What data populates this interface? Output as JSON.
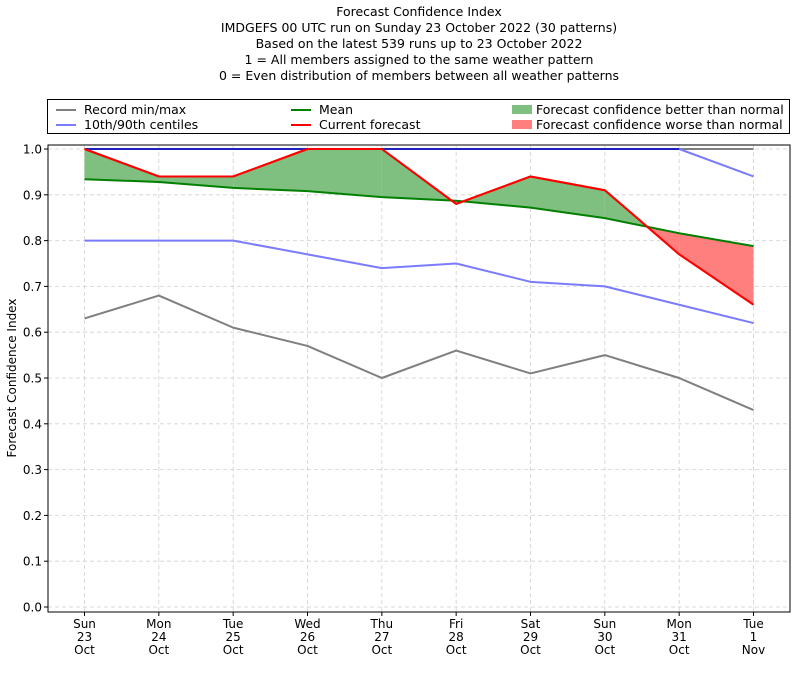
{
  "chart_data": {
    "type": "line",
    "title": "Forecast Confidence Index",
    "subtitle_lines": [
      "IMDGEFS 00 UTC run on Sunday 23 October 2022 (30 patterns)",
      "Based on the latest 539 runs up to 23 October 2022",
      "1 = All members assigned to the same weather pattern",
      "0 = Even distribution of members between all weather patterns"
    ],
    "xlabel": "",
    "ylabel": "Forecast Confidence Index",
    "ylim": [
      0.0,
      1.0
    ],
    "yticks": [
      "0.0",
      "0.1",
      "0.2",
      "0.3",
      "0.4",
      "0.5",
      "0.6",
      "0.7",
      "0.8",
      "0.9",
      "1.0"
    ],
    "categories": [
      [
        "Sun",
        "23",
        "Oct"
      ],
      [
        "Mon",
        "24",
        "Oct"
      ],
      [
        "Tue",
        "25",
        "Oct"
      ],
      [
        "Wed",
        "26",
        "Oct"
      ],
      [
        "Thu",
        "27",
        "Oct"
      ],
      [
        "Fri",
        "28",
        "Oct"
      ],
      [
        "Sat",
        "29",
        "Oct"
      ],
      [
        "Sun",
        "30",
        "Oct"
      ],
      [
        "Mon",
        "31",
        "Oct"
      ],
      [
        "Tue",
        "1",
        "Nov"
      ]
    ],
    "grid": true,
    "legend_position": "top",
    "series": [
      {
        "name": "Record min",
        "legend_group": "Record min/max",
        "color": "#7f7f7f",
        "values": [
          0.63,
          0.68,
          0.61,
          0.57,
          0.5,
          0.56,
          0.51,
          0.55,
          0.5,
          0.43
        ]
      },
      {
        "name": "Record max",
        "legend_group": "Record min/max",
        "color": "#7f7f7f",
        "values": [
          1.0,
          1.0,
          1.0,
          1.0,
          1.0,
          1.0,
          1.0,
          1.0,
          1.0,
          1.0
        ]
      },
      {
        "name": "10th centile",
        "legend_group": "10th/90th centiles",
        "color": "#7b7bff",
        "values": [
          0.8,
          0.8,
          0.8,
          0.77,
          0.74,
          0.75,
          0.71,
          0.7,
          0.66,
          0.62
        ]
      },
      {
        "name": "90th centile",
        "legend_group": "10th/90th centiles",
        "color": "#7b7bff",
        "values": [
          1.0,
          1.0,
          1.0,
          1.0,
          1.0,
          1.0,
          1.0,
          1.0,
          1.0,
          0.94
        ]
      },
      {
        "name": "Mean",
        "color": "#008000",
        "values": [
          0.934,
          0.928,
          0.915,
          0.908,
          0.895,
          0.887,
          0.872,
          0.849,
          0.816,
          0.788
        ]
      },
      {
        "name": "Current forecast",
        "color": "#ff0000",
        "values": [
          1.0,
          0.94,
          0.94,
          1.0,
          1.0,
          0.88,
          0.94,
          0.91,
          0.77,
          0.66
        ]
      }
    ],
    "fills": [
      {
        "name": "Forecast confidence better than normal",
        "color": "#7fbf7f",
        "condition": "current > mean"
      },
      {
        "name": "Forecast confidence worse than normal",
        "color": "#ff7f7f",
        "condition": "current < mean"
      }
    ],
    "legend": [
      {
        "label": "Record min/max",
        "kind": "line",
        "color": "#7f7f7f"
      },
      {
        "label": "10th/90th centiles",
        "kind": "line",
        "color": "#7b7bff"
      },
      {
        "label": "Mean",
        "kind": "line",
        "color": "#008000"
      },
      {
        "label": "Current forecast",
        "kind": "line",
        "color": "#ff0000"
      },
      {
        "label": "Forecast confidence better than normal",
        "kind": "patch",
        "color": "#7fbf7f"
      },
      {
        "label": "Forecast confidence worse than normal",
        "kind": "patch",
        "color": "#ff7f7f"
      }
    ]
  }
}
